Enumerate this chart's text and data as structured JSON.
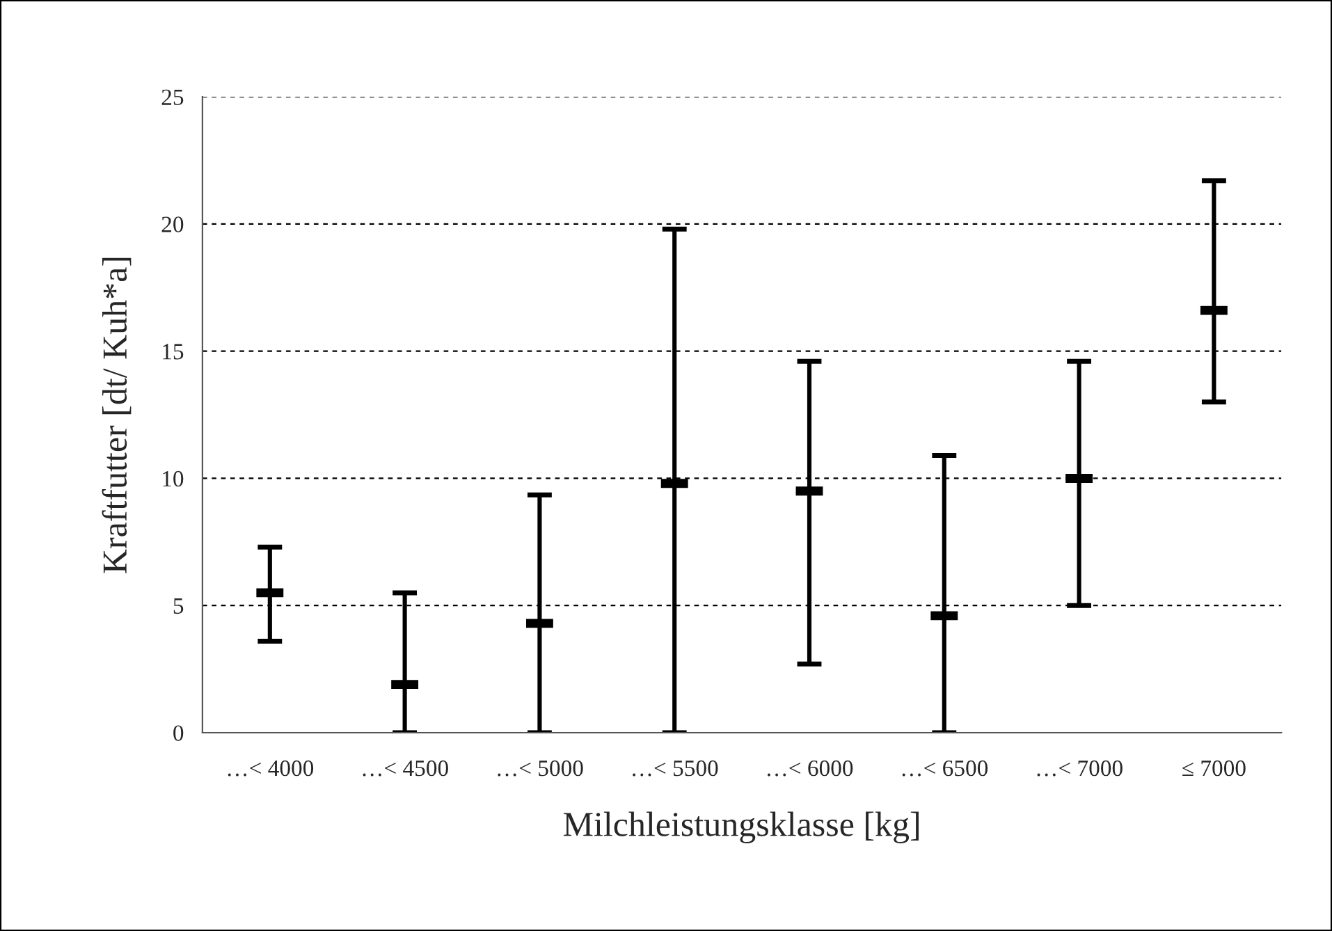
{
  "chart_data": {
    "type": "scatter",
    "xlabel": "Milchleistungsklasse [kg]",
    "ylabel": "Kraftfutter [dt/ Kuh*a]",
    "categories": [
      "…< 4000",
      "…< 4500",
      "…< 5000",
      "…< 5500",
      "…< 6000",
      "…< 6500",
      "…< 7000",
      "≤ 7000"
    ],
    "values": [
      5.5,
      1.9,
      4.3,
      9.8,
      9.5,
      4.6,
      10.0,
      16.6
    ],
    "errors": [
      [
        3.6,
        7.3
      ],
      [
        0,
        5.5
      ],
      [
        0,
        9.35
      ],
      [
        0,
        19.8
      ],
      [
        2.7,
        14.6
      ],
      [
        0,
        10.9
      ],
      [
        5.0,
        14.6
      ],
      [
        13.0,
        21.7
      ]
    ],
    "color": "#000000",
    "ylim": [
      0,
      25
    ],
    "yticks": [
      0,
      5,
      10,
      15,
      20,
      25
    ],
    "grid": "y"
  }
}
